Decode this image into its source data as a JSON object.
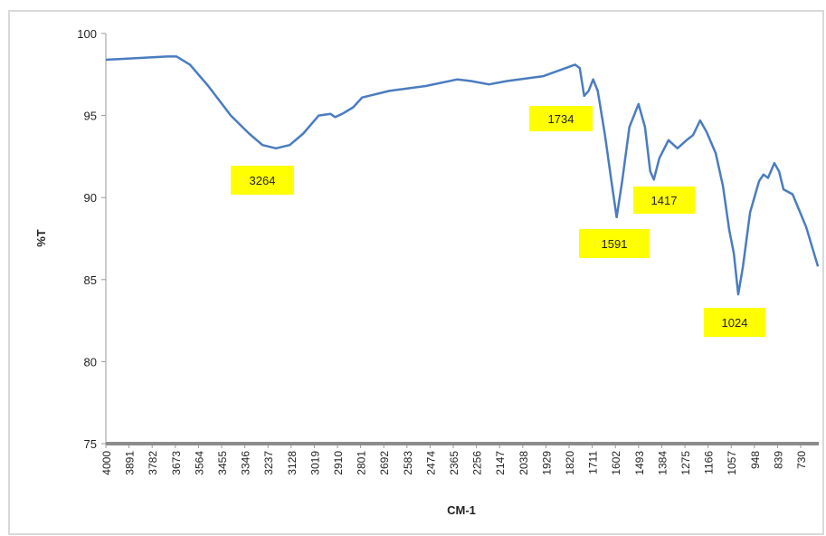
{
  "chart_data": {
    "type": "line",
    "xlabel": "CM-1",
    "ylabel": "%T",
    "color": "#4a7cc0",
    "x": [
      4000,
      3859,
      3710,
      3667,
      3604,
      3518,
      3412,
      3326,
      3263,
      3199,
      3135,
      3071,
      2998,
      2943,
      2921,
      2888,
      2836,
      2794,
      2666,
      2495,
      2346,
      2282,
      2197,
      2112,
      1941,
      1792,
      1770,
      1749,
      1728,
      1707,
      1685,
      1651,
      1621,
      1596,
      1570,
      1536,
      1493,
      1463,
      1438,
      1421,
      1395,
      1352,
      1310,
      1267,
      1237,
      1203,
      1173,
      1130,
      1096,
      1066,
      1045,
      1024,
      1002,
      968,
      926,
      905,
      884,
      854,
      832,
      811,
      768,
      704,
      649
    ],
    "values": [
      98.4,
      98.5,
      98.6,
      98.6,
      98.1,
      96.8,
      95.0,
      93.9,
      93.2,
      93.0,
      93.2,
      93.9,
      95.0,
      95.1,
      94.9,
      95.1,
      95.5,
      96.1,
      96.5,
      96.8,
      97.2,
      97.1,
      96.9,
      97.1,
      97.4,
      98.1,
      97.9,
      96.2,
      96.5,
      97.2,
      96.5,
      93.8,
      91.0,
      88.8,
      91.0,
      94.3,
      95.7,
      94.3,
      91.6,
      91.1,
      92.4,
      93.5,
      93.0,
      93.5,
      93.8,
      94.7,
      94.0,
      92.7,
      90.7,
      88.0,
      86.6,
      84.1,
      85.8,
      89.1,
      91.0,
      91.4,
      91.2,
      92.1,
      91.6,
      90.5,
      90.2,
      88.2,
      85.8
    ],
    "xlim": [
      4000,
      645
    ],
    "xticks": [
      4000,
      3891,
      3782,
      3673,
      3564,
      3455,
      3346,
      3237,
      3128,
      3019,
      2910,
      2801,
      2692,
      2583,
      2474,
      2365,
      2256,
      2147,
      2038,
      1929,
      1820,
      1711,
      1602,
      1493,
      1384,
      1275,
      1166,
      1057,
      948,
      839,
      730
    ],
    "ylim": [
      75,
      100
    ],
    "yticks": [
      75,
      80,
      85,
      90,
      95,
      100
    ],
    "annotations": [
      "3264",
      "1734",
      "1591",
      "1417",
      "1024"
    ]
  }
}
